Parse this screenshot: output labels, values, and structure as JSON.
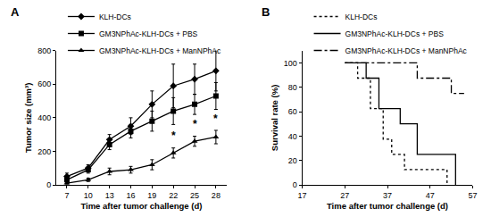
{
  "chart_data": [
    {
      "type": "line",
      "title": "A",
      "x_label": "Time after tumor challenge (d)",
      "y_label": "Tumor size (mm³)",
      "x": [
        7,
        10,
        13,
        16,
        19,
        22,
        25,
        28
      ],
      "xlim": [
        5.5,
        29.5
      ],
      "xticks": [
        7,
        10,
        13,
        16,
        19,
        22,
        25,
        28
      ],
      "ylim": [
        0,
        800
      ],
      "yticks": [
        0,
        200,
        400,
        600,
        800
      ],
      "legend": "upper left",
      "series": [
        {
          "name": "KLH-DCs",
          "color": "#000000",
          "marker": "diamond",
          "line_style": "solid",
          "values": [
            50,
            100,
            270,
            350,
            480,
            590,
            630,
            680
          ],
          "errors": [
            20,
            20,
            30,
            50,
            80,
            130,
            90,
            120
          ]
        },
        {
          "name": "GM3NPhAc-KLH-DCs + PBS",
          "color": "#000000",
          "marker": "square",
          "line_style": "solid",
          "values": [
            30,
            90,
            240,
            320,
            380,
            440,
            480,
            530
          ],
          "errors": [
            10,
            20,
            30,
            40,
            60,
            80,
            60,
            80
          ]
        },
        {
          "name": "GM3NPhAc-KLH-DCs + ManNPhAc",
          "color": "#000000",
          "marker": "triangle",
          "line_style": "solid",
          "values": [
            10,
            30,
            80,
            90,
            120,
            190,
            260,
            285
          ],
          "errors": [
            5,
            10,
            20,
            20,
            30,
            30,
            30,
            40
          ]
        }
      ],
      "annotations": [
        {
          "x": 22,
          "y": 245,
          "text": "*"
        },
        {
          "x": 25,
          "y": 315,
          "text": "*"
        },
        {
          "x": 28,
          "y": 345,
          "text": "*"
        }
      ]
    },
    {
      "type": "step",
      "title": "B",
      "x_label": "Time after tumor challenge (d)",
      "y_label": "Survival rate (%)",
      "xlim": [
        17,
        57
      ],
      "xticks": [
        17,
        27,
        37,
        47,
        57
      ],
      "ylim": [
        0,
        110
      ],
      "yticks": [
        0,
        20,
        40,
        60,
        80,
        100
      ],
      "legend": "upper left",
      "series": [
        {
          "name": "KLH-DCs",
          "color": "#000000",
          "line_style": "dotted",
          "x": [
            27,
            30,
            33,
            36,
            38,
            41,
            51
          ],
          "values": [
            100,
            87.5,
            62.5,
            37.5,
            25,
            12.5,
            0
          ]
        },
        {
          "name": "GM3NPhAc-KLH-DCs + PBS",
          "color": "#000000",
          "line_style": "solid",
          "x": [
            27,
            32,
            35,
            40,
            44,
            53
          ],
          "values": [
            100,
            87.5,
            62.5,
            50,
            25,
            0
          ]
        },
        {
          "name": "GM3NPhAc-KLH-DCs + ManNPhAc",
          "color": "#000000",
          "line_style": "dashdot",
          "x": [
            27,
            44,
            52,
            55
          ],
          "values": [
            100,
            87.5,
            75,
            75
          ]
        }
      ]
    }
  ]
}
